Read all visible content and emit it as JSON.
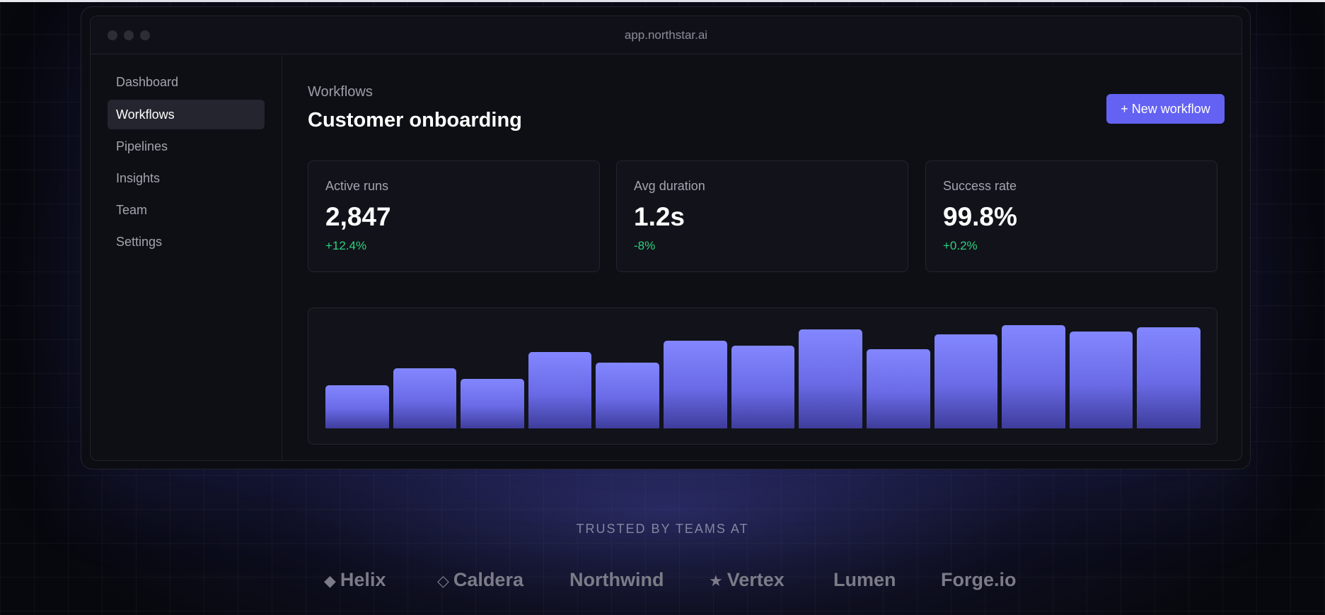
{
  "window": {
    "url": "app.northstar.ai"
  },
  "sidebar": {
    "items": [
      {
        "label": "Dashboard",
        "active": false
      },
      {
        "label": "Workflows",
        "active": true
      },
      {
        "label": "Pipelines",
        "active": false
      },
      {
        "label": "Insights",
        "active": false
      },
      {
        "label": "Team",
        "active": false
      },
      {
        "label": "Settings",
        "active": false
      }
    ]
  },
  "header": {
    "eyebrow": "Workflows",
    "title": "Customer onboarding",
    "new_button_label": "+ New workflow"
  },
  "stats": [
    {
      "label": "Active runs",
      "value": "2,847",
      "delta": "+12.4%"
    },
    {
      "label": "Avg duration",
      "value": "1.2s",
      "delta": "-8%"
    },
    {
      "label": "Success rate",
      "value": "99.8%",
      "delta": "+0.2%"
    }
  ],
  "chart_data": {
    "type": "bar",
    "values": [
      0.42,
      0.58,
      0.48,
      0.74,
      0.64,
      0.85,
      0.8,
      0.96,
      0.77,
      0.91,
      1.0,
      0.94,
      0.98
    ],
    "ylim": [
      0,
      1
    ],
    "grid": false,
    "bar_color": "#7b7ef8"
  },
  "footer": {
    "trusted_label": "TRUSTED BY TEAMS AT",
    "logos": [
      {
        "glyph": "◆",
        "name": "Helix",
        "icon": "diamond-filled-icon"
      },
      {
        "glyph": "◇",
        "name": "Caldera",
        "icon": "diamond-outline-icon"
      },
      {
        "glyph": "",
        "name": "Northwind",
        "icon": ""
      },
      {
        "glyph": "★",
        "name": "Vertex",
        "icon": "star-icon"
      },
      {
        "glyph": "",
        "name": "Lumen",
        "icon": ""
      },
      {
        "glyph": "",
        "name": "Forge.io",
        "icon": ""
      }
    ]
  },
  "colors": {
    "accent": "#6462f2",
    "positive": "#2bd37f",
    "background": "#07080d"
  }
}
